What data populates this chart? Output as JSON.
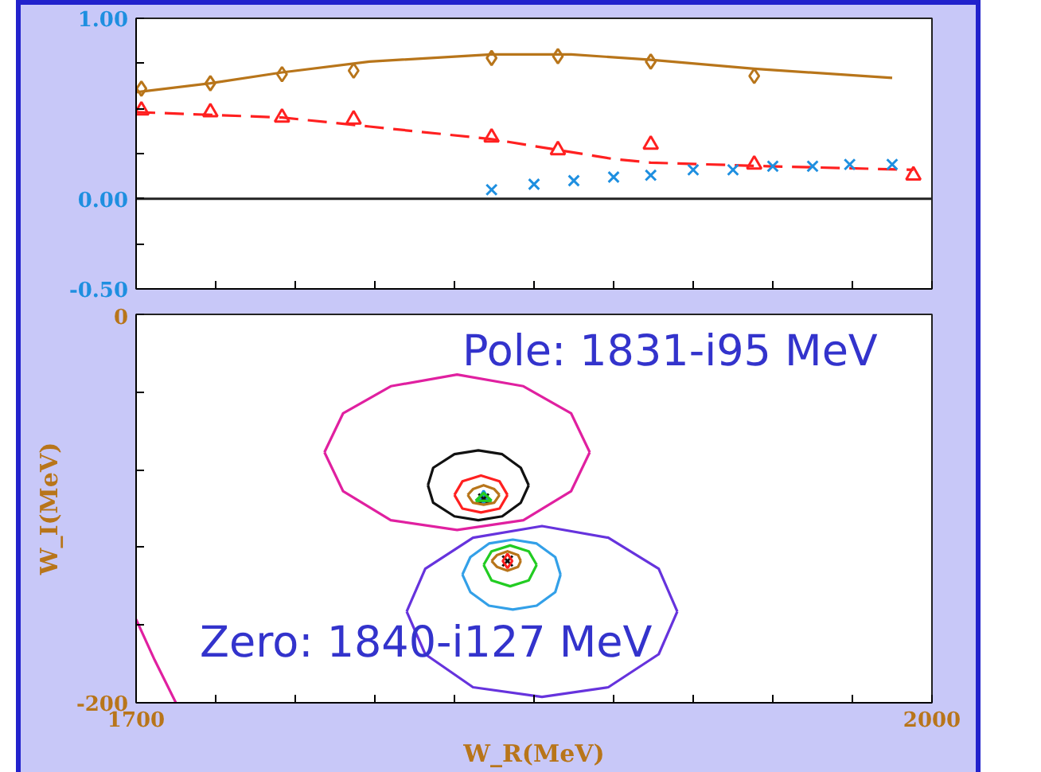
{
  "chart_data": [
    {
      "type": "line",
      "xlim": [
        1700,
        2000
      ],
      "xticks": [
        {
          "value": 1700,
          "label": null
        },
        {
          "value": 1730,
          "label": null
        },
        {
          "value": 1760,
          "label": null
        },
        {
          "value": 1790,
          "label": null
        },
        {
          "value": 1820,
          "label": null
        },
        {
          "value": 1850,
          "label": null
        },
        {
          "value": 1880,
          "label": null
        },
        {
          "value": 1910,
          "label": null
        },
        {
          "value": 1940,
          "label": null
        },
        {
          "value": 1970,
          "label": null
        },
        {
          "value": 2000,
          "label": null
        }
      ],
      "ylim": [
        -0.5,
        1.0
      ],
      "yticks": [
        {
          "value": 1.0,
          "label": "1.00"
        },
        {
          "value": 0.75,
          "label": null
        },
        {
          "value": 0.5,
          "label": null
        },
        {
          "value": 0.25,
          "label": null
        },
        {
          "value": 0,
          "label": "0.00"
        },
        {
          "value": -0.25,
          "label": null
        },
        {
          "value": -0.5,
          "label": "-0.50"
        }
      ],
      "tick_labels": "y",
      "grid": false,
      "ref_lines": [
        {
          "axis": "y",
          "value": 0,
          "color": "#222222"
        }
      ],
      "series": [
        {
          "color": "#b8751a",
          "line_style": "solid",
          "marker": "none",
          "x": [
            1700,
            1728,
            1755,
            1788,
            1834,
            1864,
            1894,
            1933,
            1985
          ],
          "values": [
            0.59,
            0.64,
            0.7,
            0.76,
            0.8,
            0.8,
            0.77,
            0.72,
            0.67
          ]
        },
        {
          "type": "scatter",
          "color": "#b8751a",
          "marker": "diamond",
          "x": [
            1702,
            1728,
            1755,
            1782,
            1834,
            1859,
            1894,
            1933
          ],
          "values": [
            0.61,
            0.64,
            0.69,
            0.71,
            0.78,
            0.79,
            0.76,
            0.68
          ]
        },
        {
          "color": "#ff2020",
          "line_style": "dashed",
          "marker": "none",
          "x": [
            1700,
            1755,
            1788,
            1834,
            1880,
            1894,
            1938,
            1993
          ],
          "values": [
            0.48,
            0.45,
            0.4,
            0.33,
            0.22,
            0.2,
            0.18,
            0.16
          ]
        },
        {
          "type": "scatter",
          "color": "#ff2020",
          "marker": "triangle",
          "x": [
            1702,
            1728,
            1755,
            1782,
            1834,
            1859,
            1894,
            1933,
            1993
          ],
          "values": [
            0.49,
            0.48,
            0.45,
            0.44,
            0.34,
            0.27,
            0.3,
            0.19,
            0.13
          ]
        },
        {
          "type": "scatter",
          "color": "#1e8fe0",
          "marker": "cross",
          "x": [
            1834,
            1850,
            1865,
            1880,
            1894,
            1910,
            1925,
            1940,
            1955,
            1969,
            1985
          ],
          "values": [
            0.05,
            0.08,
            0.1,
            0.12,
            0.13,
            0.16,
            0.16,
            0.18,
            0.18,
            0.19,
            0.19
          ]
        }
      ]
    },
    {
      "type": "line",
      "xlim": [
        1700,
        2000
      ],
      "xticks": [
        {
          "value": 1700,
          "label": "1700"
        },
        {
          "value": 1730,
          "label": null
        },
        {
          "value": 1760,
          "label": null
        },
        {
          "value": 1790,
          "label": null
        },
        {
          "value": 1820,
          "label": null
        },
        {
          "value": 1850,
          "label": null
        },
        {
          "value": 1880,
          "label": null
        },
        {
          "value": 1910,
          "label": null
        },
        {
          "value": 1940,
          "label": null
        },
        {
          "value": 1970,
          "label": null
        },
        {
          "value": 2000,
          "label": "2000"
        }
      ],
      "ylim": [
        -200,
        0
      ],
      "yticks": [
        {
          "value": 0,
          "label": "0"
        },
        {
          "value": -40,
          "label": null
        },
        {
          "value": -80,
          "label": null
        },
        {
          "value": -120,
          "label": null
        },
        {
          "value": -160,
          "label": null
        },
        {
          "value": -200,
          "label": "-200"
        }
      ],
      "xlabel": "W_R(MeV)",
      "ylabel": "W_I(MeV)",
      "grid": false,
      "annotations": [
        "Pole: 1831-i95 MeV",
        "Zero: 1840-i127 MeV"
      ],
      "series": [
        {
          "type": "scatter",
          "color": "#1e8fe0",
          "marker": "triangle",
          "x": [
            1831
          ],
          "values": [
            -95
          ]
        },
        {
          "type": "scatter",
          "color": "#111111",
          "marker": "cross",
          "x": [
            1831,
            1840
          ],
          "values": [
            -95,
            -127
          ]
        },
        {
          "color": "#e020a0",
          "line_style": "solid",
          "marker": "none",
          "x": [
            1771,
            1778,
            1796,
            1821,
            1846,
            1864,
            1871
          ],
          "values": [
            -71,
            -51,
            -37,
            -31,
            -37,
            -51,
            -71
          ]
        },
        {
          "color": "#e020a0",
          "line_style": "solid",
          "marker": "none",
          "x": [
            1771,
            1778,
            1796,
            1821,
            1846,
            1864,
            1871
          ],
          "values": [
            -71,
            -91,
            -106,
            -111,
            -106,
            -91,
            -71
          ]
        },
        {
          "color": "#e020a0",
          "line_style": "solid",
          "marker": "none",
          "x": [
            1700,
            1707,
            1715
          ],
          "values": [
            -157,
            -178,
            -200
          ]
        },
        {
          "color": "#111111",
          "line_style": "solid",
          "marker": "none",
          "x": [
            1810,
            1812,
            1820,
            1829,
            1838,
            1845,
            1848
          ],
          "values": [
            -88,
            -79,
            -72,
            -70,
            -72,
            -79,
            -88
          ]
        },
        {
          "color": "#111111",
          "line_style": "solid",
          "marker": "none",
          "x": [
            1810,
            1812,
            1820,
            1829,
            1838,
            1845,
            1848
          ],
          "values": [
            -88,
            -97,
            -104,
            -106,
            -104,
            -97,
            -88
          ]
        },
        {
          "color": "#ff2020",
          "line_style": "solid",
          "marker": "none",
          "x": [
            1820,
            1823,
            1830,
            1837,
            1840
          ],
          "values": [
            -93,
            -86,
            -83,
            -86,
            -93
          ]
        },
        {
          "color": "#ff2020",
          "line_style": "solid",
          "marker": "none",
          "x": [
            1820,
            1823,
            1830,
            1837,
            1840
          ],
          "values": [
            -93,
            -100,
            -102,
            -100,
            -93
          ]
        },
        {
          "color": "#b8751a",
          "line_style": "solid",
          "marker": "none",
          "x": [
            1825,
            1827,
            1831,
            1835,
            1837
          ],
          "values": [
            -93,
            -90,
            -88,
            -90,
            -93
          ]
        },
        {
          "color": "#b8751a",
          "line_style": "solid",
          "marker": "none",
          "x": [
            1825,
            1827,
            1831,
            1835,
            1837
          ],
          "values": [
            -93,
            -97,
            -98,
            -97,
            -93
          ]
        },
        {
          "color": "#22cc22",
          "line_style": "solid",
          "marker": "none",
          "x": [
            1828,
            1831,
            1834
          ],
          "values": [
            -96,
            -92,
            -96
          ]
        },
        {
          "color": "#22cc22",
          "line_style": "solid",
          "marker": "none",
          "x": [
            1828,
            1834
          ],
          "values": [
            -96,
            -96
          ]
        },
        {
          "color": "#6633dd",
          "line_style": "solid",
          "marker": "none",
          "x": [
            1802,
            1809,
            1827,
            1853,
            1878,
            1897,
            1904
          ],
          "values": [
            -153,
            -131,
            -115,
            -109,
            -115,
            -131,
            -153
          ]
        },
        {
          "color": "#6633dd",
          "line_style": "solid",
          "marker": "none",
          "x": [
            1802,
            1809,
            1827,
            1853,
            1878,
            1897,
            1904
          ],
          "values": [
            -153,
            -175,
            -192,
            -197,
            -192,
            -175,
            -153
          ]
        },
        {
          "color": "#33a0e8",
          "line_style": "solid",
          "marker": "none",
          "x": [
            1823,
            1826,
            1833,
            1842,
            1851,
            1858,
            1860
          ],
          "values": [
            -134,
            -125,
            -118,
            -116,
            -118,
            -125,
            -134
          ]
        },
        {
          "color": "#33a0e8",
          "line_style": "solid",
          "marker": "none",
          "x": [
            1823,
            1826,
            1833,
            1842,
            1851,
            1858,
            1860
          ],
          "values": [
            -134,
            -143,
            -150,
            -152,
            -150,
            -143,
            -134
          ]
        },
        {
          "color": "#22cc22",
          "line_style": "solid",
          "marker": "none",
          "x": [
            1831,
            1834,
            1841,
            1848,
            1851
          ],
          "values": [
            -129,
            -122,
            -119,
            -122,
            -129
          ]
        },
        {
          "color": "#22cc22",
          "line_style": "solid",
          "marker": "none",
          "x": [
            1831,
            1834,
            1841,
            1848,
            1851
          ],
          "values": [
            -129,
            -137,
            -140,
            -137,
            -129
          ]
        },
        {
          "color": "#b8751a",
          "line_style": "solid",
          "marker": "none",
          "x": [
            1834,
            1836,
            1840,
            1844,
            1845
          ],
          "values": [
            -127,
            -124,
            -122,
            -124,
            -127
          ]
        },
        {
          "color": "#b8751a",
          "line_style": "solid",
          "marker": "none",
          "x": [
            1834,
            1836,
            1840,
            1844,
            1845
          ],
          "values": [
            -127,
            -130,
            -132,
            -130,
            -127
          ]
        },
        {
          "type": "scatter",
          "color": "#ff2020",
          "marker": "diamond",
          "x": [
            1840
          ],
          "values": [
            -127
          ]
        }
      ]
    }
  ]
}
